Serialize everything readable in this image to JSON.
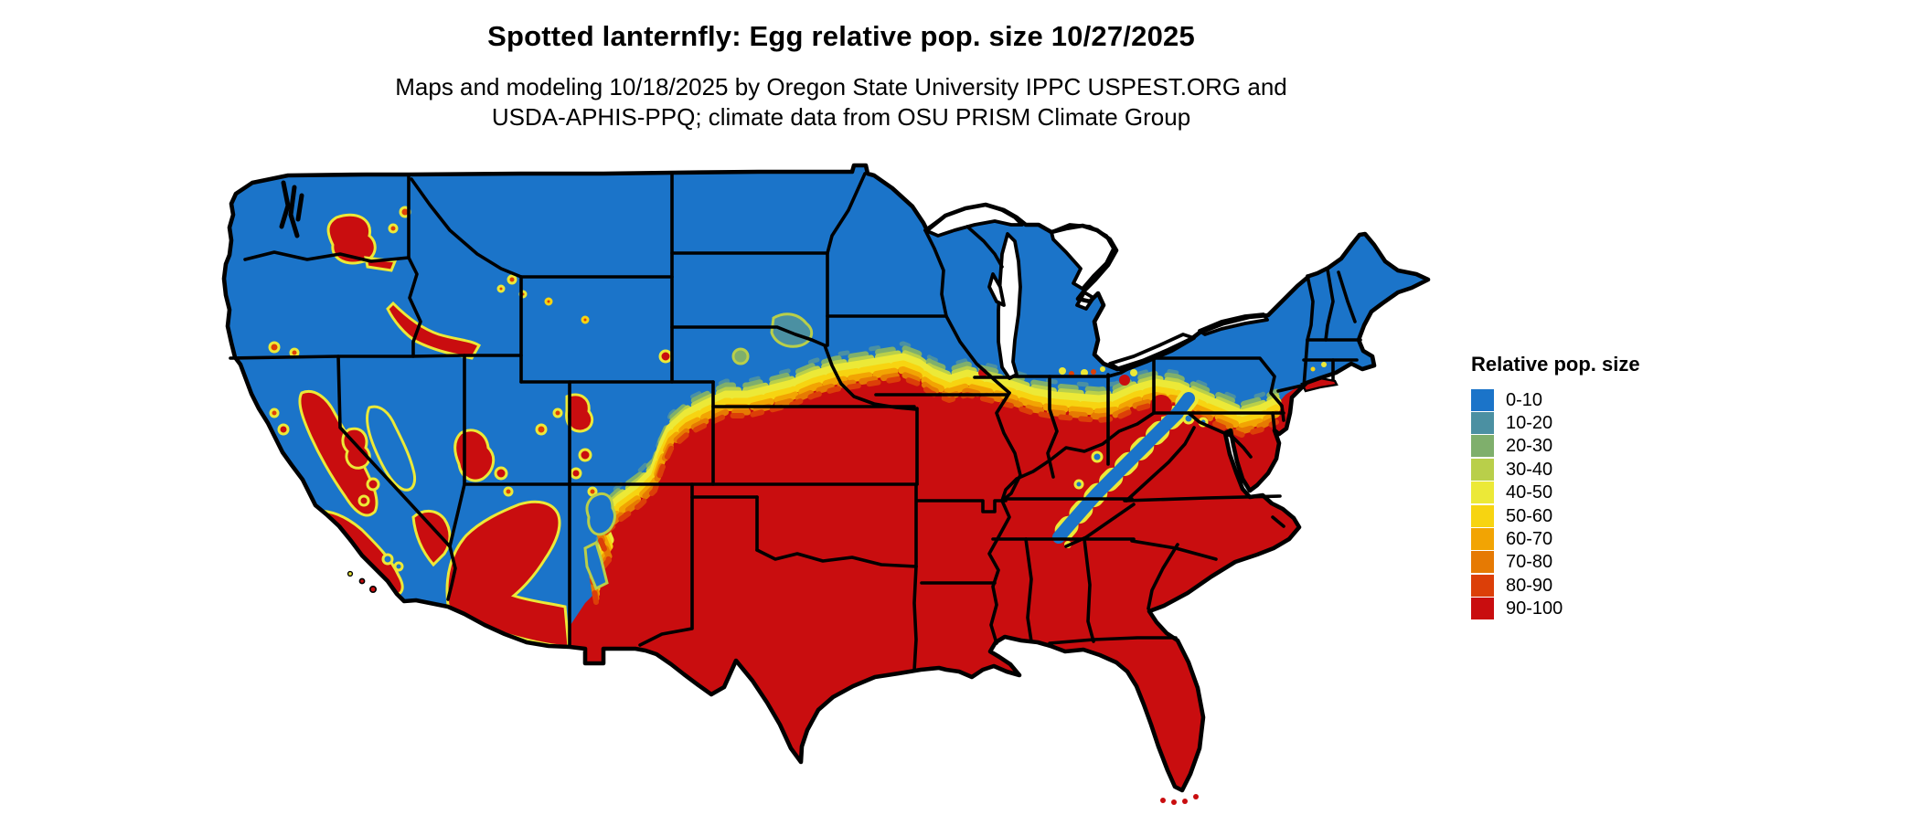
{
  "figure": {
    "title": "Spotted lanternfly: Egg relative pop. size 10/27/2025",
    "subtitle_line1": "Maps and modeling 10/18/2025 by Oregon State University IPPC USPEST.ORG and",
    "subtitle_line2": "USDA-APHIS-PPQ; climate data from OSU PRISM Climate Group"
  },
  "legend": {
    "title": "Relative pop. size",
    "items": [
      {
        "label": "0-10",
        "color": "#1b74c9"
      },
      {
        "label": "10-20",
        "color": "#4b90a2"
      },
      {
        "label": "20-30",
        "color": "#7faf6c"
      },
      {
        "label": "30-40",
        "color": "#b9cf4a"
      },
      {
        "label": "40-50",
        "color": "#ece937"
      },
      {
        "label": "50-60",
        "color": "#f7d411"
      },
      {
        "label": "60-70",
        "color": "#f2a403"
      },
      {
        "label": "70-80",
        "color": "#e67a03"
      },
      {
        "label": "80-90",
        "color": "#dc3f08"
      },
      {
        "label": "90-100",
        "color": "#c90d0f"
      }
    ]
  },
  "map": {
    "type": "choropleth",
    "region_label": "Contiguous United States with state borders",
    "border_color": "#000000",
    "background_color": "#ffffff",
    "pattern_summary": {
      "north": "0-10 relative pop. size (blue) across the northern states and New England",
      "south": "90-100 relative pop. size (red) across the southern and eastern states",
      "transition": "yellow-orange 30-80 band from the Colorado/Nebraska plains through Iowa, northern Illinois, Indiana, Ohio and Pennsylvania to New Jersey",
      "west": "patchy red valleys (Columbia Basin, Snake River Plain, California Central Valley, southern Nevada, Arizona deserts) within blue mountain regions; blue Appalachian ridge within the red east"
    }
  }
}
